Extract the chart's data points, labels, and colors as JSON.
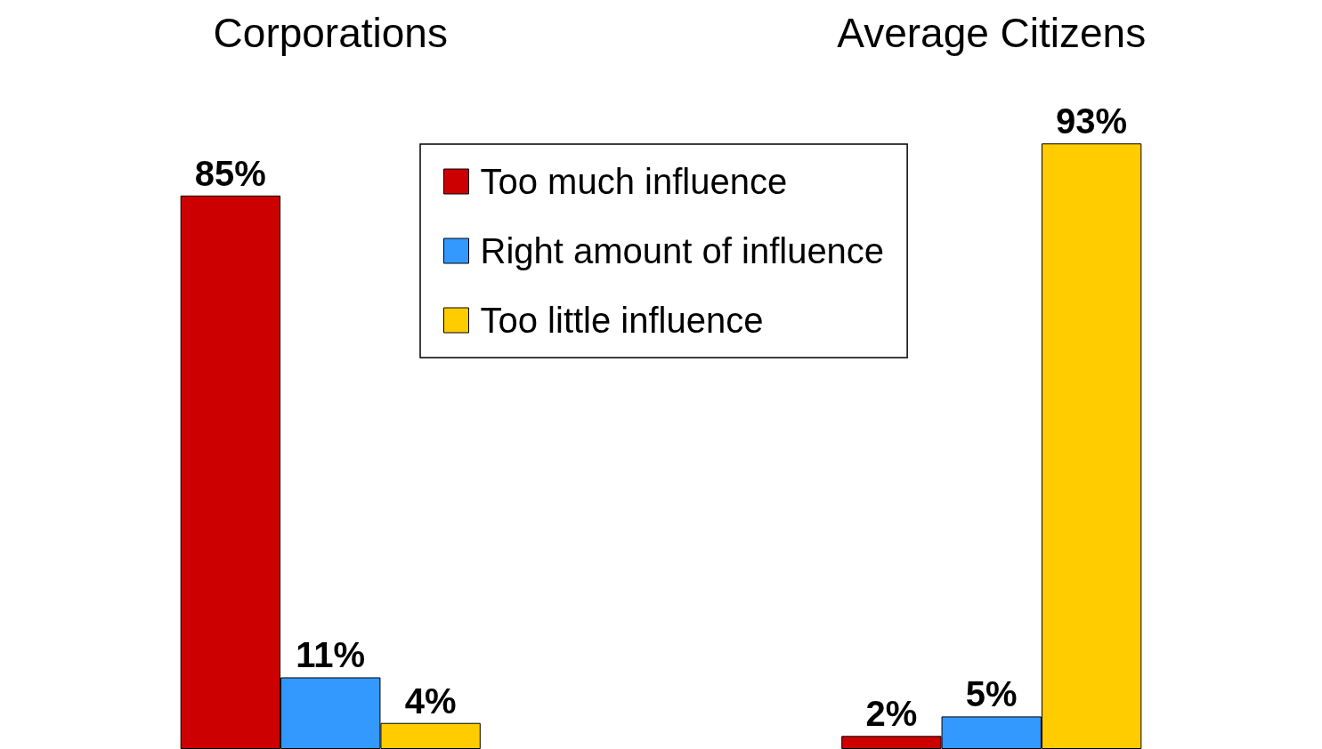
{
  "chart_data": {
    "type": "bar",
    "categories": [
      "Corporations",
      "Average Citizens"
    ],
    "legend": "top",
    "series": [
      {
        "name": "Too much influence",
        "color": "#cc0000",
        "values": [
          85,
          2
        ],
        "value_labels": [
          "85%",
          "2%"
        ]
      },
      {
        "name": "Right amount of influence",
        "color": "#3399ff",
        "values": [
          11,
          5
        ],
        "value_labels": [
          "11%",
          "5%"
        ]
      },
      {
        "name": "Too little influence",
        "color": "#ffcc00",
        "values": [
          4,
          93
        ],
        "value_labels": [
          "4%",
          "93%"
        ]
      }
    ]
  }
}
